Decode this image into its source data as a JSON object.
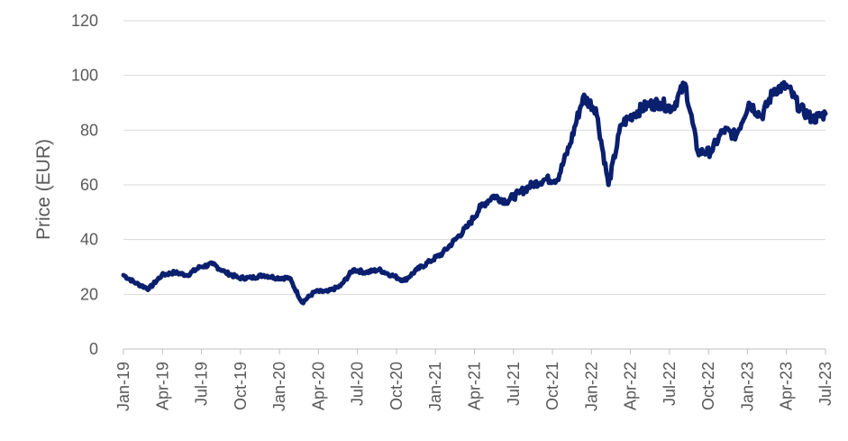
{
  "chart_data": {
    "type": "line",
    "title": "",
    "xlabel": "",
    "ylabel": "Price (EUR)",
    "ylim": [
      0,
      120
    ],
    "yticks": [
      0,
      20,
      40,
      60,
      80,
      100,
      120
    ],
    "xticks": [
      "Jan-19",
      "Apr-19",
      "Jul-19",
      "Oct-19",
      "Jan-20",
      "Apr-20",
      "Jul-20",
      "Oct-20",
      "Jan-21",
      "Apr-21",
      "Jul-21",
      "Oct-21",
      "Jan-22",
      "Apr-22",
      "Jul-22",
      "Oct-22",
      "Jan-23",
      "Apr-23",
      "Jul-23"
    ],
    "grid": true,
    "legend": "none",
    "line_color": "#0a1f6e",
    "series": [
      {
        "x": [
          "Jan-19",
          "Feb-19",
          "Mar-19",
          "Apr-19",
          "May-19",
          "Jun-19",
          "Jul-19",
          "Aug-19",
          "Sep-19",
          "Oct-19",
          "Nov-19",
          "Dec-19",
          "Jan-20",
          "Feb-20",
          "Mid-Mar-20",
          "Apr-20",
          "May-20",
          "Jun-20",
          "Jul-20",
          "Aug-20",
          "Sep-20",
          "Oct-20",
          "Nov-20",
          "Dec-20",
          "Jan-21",
          "Feb-21",
          "Mar-21",
          "Apr-21",
          "May-21",
          "Jun-21",
          "Jul-21",
          "Aug-21",
          "Sep-21",
          "Oct-21",
          "Nov-21",
          "Dec-21",
          "Jan-22",
          "Feb-22",
          "Early-Mar-22",
          "Mar-22",
          "Apr-22",
          "May-22",
          "Jun-22",
          "Jul-22",
          "Aug-22",
          "Sep-22",
          "Oct-22",
          "Nov-22",
          "Dec-22",
          "Jan-23",
          "Feb-23",
          "Mar-23",
          "Apr-23",
          "May-23",
          "Jun-23",
          "Jul-23"
        ],
        "values": [
          27,
          24,
          22,
          27,
          28,
          27,
          30,
          31,
          28,
          26,
          26,
          27,
          26,
          26,
          17,
          21,
          21,
          23,
          29,
          28,
          29,
          27,
          25,
          29,
          32,
          35,
          40,
          45,
          52,
          56,
          54,
          57,
          60,
          62,
          62,
          75,
          92,
          88,
          60,
          82,
          86,
          89,
          90,
          88,
          97,
          72,
          72,
          80,
          78,
          90,
          85,
          95,
          96,
          88,
          84,
          86
        ]
      }
    ]
  }
}
